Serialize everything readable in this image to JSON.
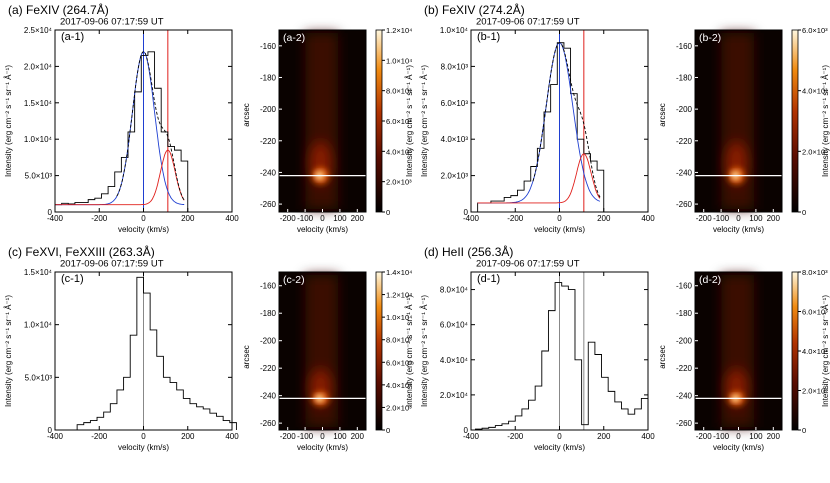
{
  "colors": {
    "blue": "#1f3fd1",
    "red": "#e0201c",
    "black": "#000000",
    "white": "#ffffff"
  },
  "chart_data": [
    {
      "panel": "a",
      "type": "line",
      "title": "(a) FeXIV (264.7Å)",
      "timestamp": "2017-09-06   07:17:59 UT",
      "line_label": "(a-1)",
      "xlabel": "velocity (km/s)",
      "ylabel": "Intensity (erg cm⁻² s⁻¹ sr⁻¹ Å⁻¹)",
      "xlim": [
        -400,
        400
      ],
      "xticks": [
        -400,
        -200,
        0,
        200,
        400
      ],
      "xtick_labels": [
        "-400",
        "-200",
        "0",
        "200",
        "400"
      ],
      "ylim": [
        0,
        25000
      ],
      "yticks": [
        0,
        5000,
        10000,
        15000,
        20000,
        25000
      ],
      "ytick_labels": [
        "0",
        "5.0×10³",
        "1.0×10⁴",
        "1.5×10⁴",
        "2.0×10⁴",
        "2.5×10⁴"
      ],
      "vlines": [
        {
          "x": 0,
          "color": "blue"
        },
        {
          "x": 110,
          "color": "red"
        }
      ],
      "histogram": {
        "x": [
          -400,
          -370,
          -340,
          -310,
          -280,
          -250,
          -220,
          -190,
          -160,
          -130,
          -100,
          -70,
          -40,
          -10,
          20,
          50,
          80,
          110,
          140,
          170
        ],
        "y": [
          1000,
          1200,
          1100,
          1300,
          1300,
          1700,
          1900,
          2500,
          3500,
          5500,
          7500,
          11000,
          16500,
          21500,
          22000,
          17000,
          11000,
          9000,
          8500,
          7000
        ]
      },
      "components": [
        {
          "color": "blue",
          "shape": "gaussian",
          "amplitude": 21000,
          "center": 0,
          "sigma": 50,
          "offset": 1000
        },
        {
          "color": "red",
          "shape": "gaussian",
          "amplitude": 7500,
          "center": 110,
          "sigma": 33,
          "offset": 1000
        },
        {
          "color": "black-dashed",
          "shape": "sum"
        }
      ],
      "map": {
        "label": "(a-2)",
        "xlabel": "velocity (km/s)",
        "ylabel": "arcsec",
        "xticks": [
          -200,
          -100,
          0,
          100,
          200
        ],
        "xtick_labels": [
          "-200",
          "-100",
          "0",
          "100",
          "200"
        ],
        "yticks": [
          -160,
          -180,
          -200,
          -220,
          -240,
          -260
        ],
        "ytick_labels": [
          "-160",
          "-180",
          "-200",
          "-220",
          "-240",
          "-260"
        ],
        "colorbar_ticks": [
          "1.2×10⁴",
          "1.0×10⁴",
          "8.0×10³",
          "6.0×10³",
          "4.0×10³",
          "2.0×10³",
          "0"
        ],
        "slit_row_arcsec": -242
      }
    },
    {
      "panel": "b",
      "type": "line",
      "title": "(b) FeXIV (274.2Å)",
      "timestamp": "2017-09-06   07:17:59 UT",
      "line_label": "(b-1)",
      "xlabel": "velocity (km/s)",
      "ylabel": "Intensity (erg cm⁻² s⁻¹ sr⁻¹ Å⁻¹)",
      "xlim": [
        -400,
        400
      ],
      "xticks": [
        -400,
        -200,
        0,
        200,
        400
      ],
      "xtick_labels": [
        "-400",
        "-200",
        "0",
        "200",
        "400"
      ],
      "ylim": [
        0,
        10000
      ],
      "yticks": [
        0,
        2000,
        4000,
        6000,
        8000,
        10000
      ],
      "ytick_labels": [
        "0",
        "2.0×10³",
        "4.0×10³",
        "6.0×10³",
        "8.0×10³",
        "1.0×10⁴"
      ],
      "vlines": [
        {
          "x": 0,
          "color": "blue"
        },
        {
          "x": 110,
          "color": "red"
        }
      ],
      "histogram": {
        "x": [
          -370,
          -340,
          -310,
          -280,
          -250,
          -220,
          -190,
          -160,
          -130,
          -100,
          -70,
          -40,
          -10,
          20,
          50,
          80,
          110,
          140,
          170
        ],
        "y": [
          500,
          500,
          600,
          600,
          800,
          900,
          1200,
          1700,
          2500,
          3500,
          5500,
          7000,
          9300,
          9000,
          6500,
          4000,
          3200,
          2800,
          2300
        ]
      },
      "components": [
        {
          "color": "blue",
          "shape": "gaussian",
          "amplitude": 8800,
          "center": 0,
          "sigma": 60,
          "offset": 500
        },
        {
          "color": "red",
          "shape": "gaussian",
          "amplitude": 2700,
          "center": 110,
          "sigma": 33,
          "offset": 500
        },
        {
          "color": "black-dashed",
          "shape": "sum"
        }
      ],
      "map": {
        "label": "(b-2)",
        "xlabel": "velocity (km/s)",
        "ylabel": "arcsec",
        "xticks": [
          -200,
          -100,
          0,
          100,
          200
        ],
        "xtick_labels": [
          "-200",
          "-100",
          "0",
          "100",
          "200"
        ],
        "yticks": [
          -160,
          -180,
          -200,
          -220,
          -240,
          -260
        ],
        "ytick_labels": [
          "-160",
          "-180",
          "-200",
          "-220",
          "-240",
          "-260"
        ],
        "colorbar_ticks": [
          "6.0×10³",
          "4.0×10³",
          "2.0×10³",
          "0"
        ],
        "slit_row_arcsec": -242
      }
    },
    {
      "panel": "c",
      "type": "line",
      "title": "(c) FeXVI, FeXXIII (263.3Å)",
      "timestamp": "2017-09-06   07:17:59 UT",
      "line_label": "(c-1)",
      "xlabel": "velocity (km/s)",
      "ylabel": "Intensity (erg cm⁻² s⁻¹ sr⁻¹ Å⁻¹)",
      "xlim": [
        -400,
        400
      ],
      "xticks": [
        -400,
        -200,
        0,
        200,
        400
      ],
      "xtick_labels": [
        "-400",
        "-200",
        "0",
        "200",
        "400"
      ],
      "ylim": [
        0,
        15000
      ],
      "yticks": [
        0,
        5000,
        10000,
        15000
      ],
      "ytick_labels": [
        "0",
        "5.0×10³",
        "1.0×10⁴",
        "1.5×10⁴"
      ],
      "vlines": [
        {
          "x": 0,
          "color": "gray"
        }
      ],
      "histogram": {
        "x": [
          -300,
          -270,
          -240,
          -210,
          -180,
          -150,
          -120,
          -90,
          -60,
          -30,
          0,
          30,
          60,
          90,
          120,
          150,
          180,
          210,
          240,
          270,
          300,
          330,
          360,
          390
        ],
        "y": [
          500,
          700,
          900,
          1200,
          1700,
          2500,
          3800,
          5000,
          9000,
          14500,
          13000,
          9500,
          7000,
          5000,
          4500,
          3800,
          3000,
          2500,
          2200,
          2000,
          1600,
          1300,
          900,
          700
        ]
      },
      "map": {
        "label": "(c-2)",
        "xlabel": "velocity (km/s)",
        "ylabel": "arcsec",
        "xticks": [
          -200,
          -100,
          0,
          100,
          200
        ],
        "xtick_labels": [
          "-200",
          "-100",
          "0",
          "100",
          "200"
        ],
        "yticks": [
          -160,
          -180,
          -200,
          -220,
          -240,
          -260
        ],
        "ytick_labels": [
          "-160",
          "-180",
          "-200",
          "-220",
          "-240",
          "-260"
        ],
        "colorbar_ticks": [
          "1.4×10⁴",
          "1.2×10⁴",
          "1.0×10⁴",
          "8.0×10³",
          "6.0×10³",
          "4.0×10³",
          "2.0×10³",
          "0"
        ],
        "slit_row_arcsec": -242
      }
    },
    {
      "panel": "d",
      "type": "line",
      "title": "(d) HeII (256.3Å)",
      "timestamp": "2017-09-06   07:17:59 UT",
      "line_label": "(d-1)",
      "xlabel": "velocity (km/s)",
      "ylabel": "Intensity (erg cm⁻² s⁻¹ sr⁻¹ Å⁻¹)",
      "xlim": [
        -400,
        400
      ],
      "xticks": [
        -400,
        -200,
        0,
        200,
        400
      ],
      "xtick_labels": [
        "-400",
        "-200",
        "0",
        "200",
        "400"
      ],
      "ylim": [
        0,
        90000
      ],
      "yticks": [
        0,
        20000,
        40000,
        60000,
        80000
      ],
      "ytick_labels": [
        "0",
        "2.0×10⁴",
        "4.0×10⁴",
        "6.0×10⁴",
        "8.0×10⁴"
      ],
      "vlines": [
        {
          "x": 0,
          "color": "gray"
        },
        {
          "x": 110,
          "color": "gray"
        }
      ],
      "histogram": {
        "x": [
          -380,
          -350,
          -320,
          -290,
          -260,
          -230,
          -200,
          -170,
          -140,
          -110,
          -80,
          -50,
          -20,
          10,
          40,
          70,
          100,
          130,
          160,
          190,
          220,
          250,
          280,
          310,
          340,
          370
        ],
        "y": [
          500,
          1000,
          1500,
          2500,
          3500,
          5000,
          8000,
          12000,
          17000,
          25000,
          45000,
          68000,
          84000,
          82000,
          80000,
          40000,
          3000,
          50000,
          43000,
          30000,
          22000,
          16000,
          12000,
          9000,
          12000,
          18000
        ]
      },
      "map": {
        "label": "(d-2)",
        "xlabel": "velocity (km/s)",
        "ylabel": "arcsec",
        "xticks": [
          -200,
          -100,
          0,
          100,
          200
        ],
        "xtick_labels": [
          "-200",
          "-100",
          "0",
          "100",
          "200"
        ],
        "yticks": [
          -160,
          -180,
          -200,
          -220,
          -240,
          -260
        ],
        "ytick_labels": [
          "-160",
          "-180",
          "-200",
          "-220",
          "-240",
          "-260"
        ],
        "colorbar_ticks": [
          "8.0×10³",
          "6.0×10³",
          "4.0×10³",
          "2.0×10³",
          "0"
        ],
        "slit_row_arcsec": -242
      }
    }
  ]
}
